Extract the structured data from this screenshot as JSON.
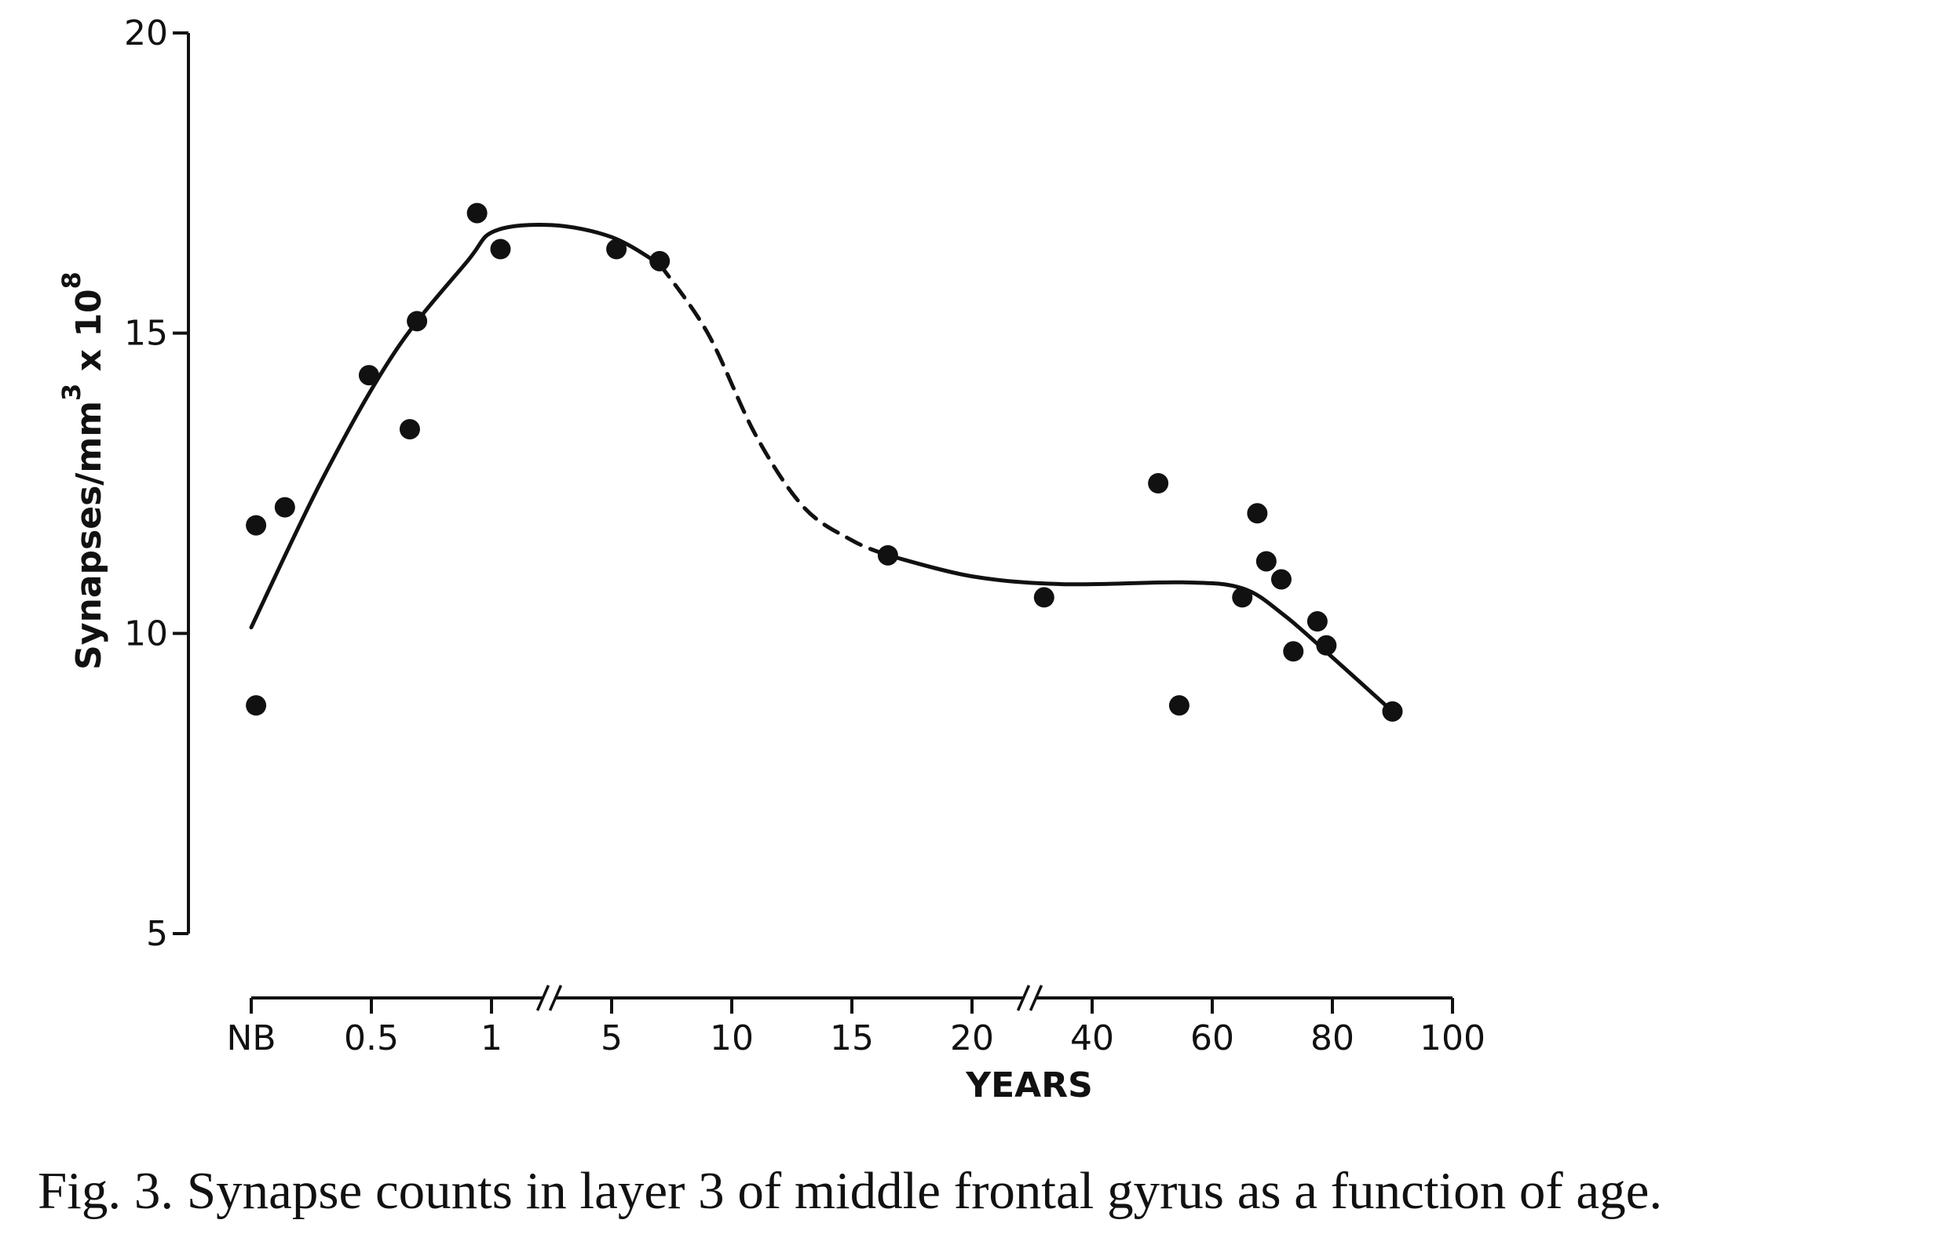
{
  "caption": "Fig. 3. Synapse counts in layer 3 of middle frontal gyrus as a function of age.",
  "chart_data": {
    "type": "scatter",
    "title": "",
    "xlabel": "YEARS",
    "ylabel": {
      "text": "Synapses/mm",
      "sup1": "3",
      "mid": " x 10",
      "sup2": "8"
    },
    "x_ticks": [
      {
        "value": 0,
        "label": "NB"
      },
      {
        "value": 0.5,
        "label": "0.5"
      },
      {
        "value": 1,
        "label": "1"
      },
      {
        "value": 5,
        "label": "5"
      },
      {
        "value": 10,
        "label": "10"
      },
      {
        "value": 15,
        "label": "15"
      },
      {
        "value": 20,
        "label": "20"
      },
      {
        "value": 40,
        "label": "40"
      },
      {
        "value": 60,
        "label": "60"
      },
      {
        "value": 80,
        "label": "80"
      },
      {
        "value": 100,
        "label": "100"
      }
    ],
    "x_axis_breaks": [
      1,
      20
    ],
    "y_ticks": [
      5,
      10,
      15,
      20
    ],
    "ylim": [
      5,
      20
    ],
    "grid": false,
    "series": [
      {
        "points": [
          {
            "x": 0.02,
            "y": 11.8
          },
          {
            "x": 0.02,
            "y": 8.8
          },
          {
            "x": 0.14,
            "y": 12.1
          },
          {
            "x": 0.49,
            "y": 14.3
          },
          {
            "x": 0.66,
            "y": 13.4
          },
          {
            "x": 0.69,
            "y": 15.2
          },
          {
            "x": 0.94,
            "y": 17.0
          },
          {
            "x": 1.3,
            "y": 16.4
          },
          {
            "x": 5.2,
            "y": 16.4
          },
          {
            "x": 7.0,
            "y": 16.2
          },
          {
            "x": 16.5,
            "y": 11.3
          },
          {
            "x": 32,
            "y": 10.6
          },
          {
            "x": 51,
            "y": 12.5
          },
          {
            "x": 54.5,
            "y": 8.8
          },
          {
            "x": 65,
            "y": 10.6
          },
          {
            "x": 67.5,
            "y": 12.0
          },
          {
            "x": 69,
            "y": 11.2
          },
          {
            "x": 71.5,
            "y": 10.9
          },
          {
            "x": 73.5,
            "y": 9.7
          },
          {
            "x": 77.5,
            "y": 10.2
          },
          {
            "x": 79,
            "y": 9.8
          },
          {
            "x": 90,
            "y": 8.7
          }
        ]
      }
    ],
    "fit_curve": {
      "style": "smooth",
      "segments": [
        {
          "dashed": false,
          "points": [
            {
              "x": 0,
              "y": 10.1
            },
            {
              "x": 0.3,
              "y": 12.6
            },
            {
              "x": 0.6,
              "y": 14.7
            },
            {
              "x": 0.9,
              "y": 16.2
            },
            {
              "x": 1.1,
              "y": 16.7
            },
            {
              "x": 3,
              "y": 16.8
            },
            {
              "x": 5,
              "y": 16.6
            },
            {
              "x": 7,
              "y": 16.15
            }
          ]
        },
        {
          "dashed": true,
          "points": [
            {
              "x": 7,
              "y": 16.15
            },
            {
              "x": 9,
              "y": 15.0
            },
            {
              "x": 11,
              "y": 13.3
            },
            {
              "x": 13,
              "y": 12.1
            },
            {
              "x": 15,
              "y": 11.55
            },
            {
              "x": 16.5,
              "y": 11.3
            }
          ]
        },
        {
          "dashed": false,
          "points": [
            {
              "x": 16.5,
              "y": 11.3
            },
            {
              "x": 20,
              "y": 10.95
            },
            {
              "x": 35,
              "y": 10.82
            },
            {
              "x": 55,
              "y": 10.85
            },
            {
              "x": 65,
              "y": 10.75
            },
            {
              "x": 72,
              "y": 10.3
            },
            {
              "x": 80,
              "y": 9.6
            },
            {
              "x": 90,
              "y": 8.7
            }
          ]
        }
      ]
    }
  }
}
